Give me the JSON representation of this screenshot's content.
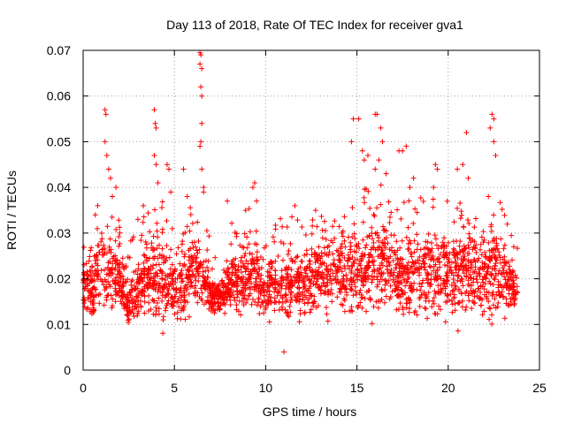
{
  "chart_data": {
    "type": "scatter",
    "title": "Day 113 of 2018, Rate Of TEC Index for receiver gva1",
    "xlabel": "GPS time / hours",
    "ylabel": "ROTI / TECUs",
    "xlim": [
      0,
      25
    ],
    "ylim": [
      0,
      0.07
    ],
    "x_ticks": [
      "0",
      "5",
      "10",
      "15",
      "20",
      "25"
    ],
    "y_ticks": [
      "0",
      "0.01",
      "0.02",
      "0.03",
      "0.04",
      "0.05",
      "0.06",
      "0.07"
    ],
    "grid": true,
    "marker": "+",
    "series_color": "#ff0000",
    "band_lower": [
      [
        0.0,
        0.012
      ],
      [
        0.5,
        0.009
      ],
      [
        1.0,
        0.01
      ],
      [
        1.5,
        0.01
      ],
      [
        2.0,
        0.011
      ],
      [
        2.5,
        0.008
      ],
      [
        3.0,
        0.01
      ],
      [
        3.5,
        0.009
      ],
      [
        4.0,
        0.007
      ],
      [
        4.5,
        0.008
      ],
      [
        5.0,
        0.01
      ],
      [
        5.5,
        0.009
      ],
      [
        6.0,
        0.011
      ],
      [
        6.5,
        0.01
      ],
      [
        7.0,
        0.01
      ],
      [
        7.5,
        0.012
      ],
      [
        8.0,
        0.012
      ],
      [
        8.5,
        0.011
      ],
      [
        9.0,
        0.011
      ],
      [
        9.5,
        0.012
      ],
      [
        10.0,
        0.009
      ],
      [
        10.5,
        0.011
      ],
      [
        11.0,
        0.007
      ],
      [
        11.5,
        0.01
      ],
      [
        12.0,
        0.008
      ],
      [
        12.5,
        0.011
      ],
      [
        13.0,
        0.011
      ],
      [
        13.5,
        0.011
      ],
      [
        14.0,
        0.012
      ],
      [
        14.5,
        0.01
      ],
      [
        15.0,
        0.009
      ],
      [
        15.5,
        0.01
      ],
      [
        16.0,
        0.009
      ],
      [
        16.5,
        0.01
      ],
      [
        17.0,
        0.009
      ],
      [
        17.5,
        0.008
      ],
      [
        18.0,
        0.008
      ],
      [
        18.5,
        0.009
      ],
      [
        19.0,
        0.009
      ],
      [
        19.5,
        0.01
      ],
      [
        20.0,
        0.009
      ],
      [
        20.5,
        0.008
      ],
      [
        21.0,
        0.009
      ],
      [
        21.5,
        0.009
      ],
      [
        22.0,
        0.009
      ],
      [
        22.5,
        0.009
      ],
      [
        23.0,
        0.01
      ],
      [
        23.5,
        0.012
      ],
      [
        23.8,
        0.013
      ]
    ],
    "band_upper": [
      [
        0.0,
        0.025
      ],
      [
        0.5,
        0.026
      ],
      [
        1.0,
        0.032
      ],
      [
        1.5,
        0.031
      ],
      [
        2.0,
        0.027
      ],
      [
        2.5,
        0.022
      ],
      [
        3.0,
        0.025
      ],
      [
        3.5,
        0.03
      ],
      [
        4.0,
        0.033
      ],
      [
        4.5,
        0.031
      ],
      [
        5.0,
        0.026
      ],
      [
        5.5,
        0.027
      ],
      [
        6.0,
        0.031
      ],
      [
        6.5,
        0.029
      ],
      [
        7.0,
        0.022
      ],
      [
        7.5,
        0.019
      ],
      [
        8.0,
        0.027
      ],
      [
        8.5,
        0.026
      ],
      [
        9.0,
        0.03
      ],
      [
        9.5,
        0.029
      ],
      [
        10.0,
        0.024
      ],
      [
        10.5,
        0.029
      ],
      [
        11.0,
        0.026
      ],
      [
        11.5,
        0.03
      ],
      [
        12.0,
        0.028
      ],
      [
        12.5,
        0.029
      ],
      [
        13.0,
        0.03
      ],
      [
        13.5,
        0.03
      ],
      [
        14.0,
        0.031
      ],
      [
        14.5,
        0.032
      ],
      [
        15.0,
        0.032
      ],
      [
        15.5,
        0.034
      ],
      [
        16.0,
        0.037
      ],
      [
        16.5,
        0.034
      ],
      [
        17.0,
        0.033
      ],
      [
        17.5,
        0.032
      ],
      [
        18.0,
        0.033
      ],
      [
        18.5,
        0.033
      ],
      [
        19.0,
        0.033
      ],
      [
        19.5,
        0.033
      ],
      [
        20.0,
        0.032
      ],
      [
        20.5,
        0.031
      ],
      [
        21.0,
        0.034
      ],
      [
        21.5,
        0.033
      ],
      [
        22.0,
        0.031
      ],
      [
        22.5,
        0.033
      ],
      [
        23.0,
        0.031
      ],
      [
        23.5,
        0.024
      ],
      [
        23.8,
        0.022
      ]
    ],
    "spikes": [
      {
        "x": 1.2,
        "y": 0.057
      },
      {
        "x": 1.25,
        "y": 0.056
      },
      {
        "x": 1.2,
        "y": 0.05
      },
      {
        "x": 1.3,
        "y": 0.047
      },
      {
        "x": 1.4,
        "y": 0.044
      },
      {
        "x": 1.5,
        "y": 0.042
      },
      {
        "x": 1.6,
        "y": 0.038
      },
      {
        "x": 1.8,
        "y": 0.04
      },
      {
        "x": 0.8,
        "y": 0.036
      },
      {
        "x": 3.0,
        "y": 0.033
      },
      {
        "x": 3.3,
        "y": 0.036
      },
      {
        "x": 3.9,
        "y": 0.057
      },
      {
        "x": 3.95,
        "y": 0.054
      },
      {
        "x": 4.0,
        "y": 0.053
      },
      {
        "x": 3.9,
        "y": 0.047
      },
      {
        "x": 4.0,
        "y": 0.045
      },
      {
        "x": 4.1,
        "y": 0.041
      },
      {
        "x": 4.6,
        "y": 0.045
      },
      {
        "x": 4.7,
        "y": 0.044
      },
      {
        "x": 4.8,
        "y": 0.039
      },
      {
        "x": 5.5,
        "y": 0.044
      },
      {
        "x": 5.7,
        "y": 0.038
      },
      {
        "x": 6.4,
        "y": 0.0695
      },
      {
        "x": 6.45,
        "y": 0.069
      },
      {
        "x": 6.4,
        "y": 0.067
      },
      {
        "x": 6.5,
        "y": 0.066
      },
      {
        "x": 6.45,
        "y": 0.062
      },
      {
        "x": 6.5,
        "y": 0.06
      },
      {
        "x": 6.5,
        "y": 0.054
      },
      {
        "x": 6.45,
        "y": 0.05
      },
      {
        "x": 6.4,
        "y": 0.049
      },
      {
        "x": 6.5,
        "y": 0.044
      },
      {
        "x": 6.6,
        "y": 0.04
      },
      {
        "x": 6.6,
        "y": 0.039
      },
      {
        "x": 7.9,
        "y": 0.037
      },
      {
        "x": 9.3,
        "y": 0.04
      },
      {
        "x": 9.4,
        "y": 0.041
      },
      {
        "x": 9.5,
        "y": 0.037
      },
      {
        "x": 11.6,
        "y": 0.036
      },
      {
        "x": 11.0,
        "y": 0.004
      },
      {
        "x": 14.8,
        "y": 0.055
      },
      {
        "x": 15.1,
        "y": 0.055
      },
      {
        "x": 14.7,
        "y": 0.05
      },
      {
        "x": 15.3,
        "y": 0.048
      },
      {
        "x": 15.4,
        "y": 0.046
      },
      {
        "x": 16.0,
        "y": 0.056
      },
      {
        "x": 16.1,
        "y": 0.056
      },
      {
        "x": 16.3,
        "y": 0.053
      },
      {
        "x": 16.4,
        "y": 0.05
      },
      {
        "x": 15.6,
        "y": 0.047
      },
      {
        "x": 16.2,
        "y": 0.046
      },
      {
        "x": 16.0,
        "y": 0.044
      },
      {
        "x": 16.6,
        "y": 0.043
      },
      {
        "x": 17.3,
        "y": 0.048
      },
      {
        "x": 17.5,
        "y": 0.048
      },
      {
        "x": 17.7,
        "y": 0.049
      },
      {
        "x": 18.1,
        "y": 0.042
      },
      {
        "x": 17.9,
        "y": 0.04
      },
      {
        "x": 19.3,
        "y": 0.045
      },
      {
        "x": 19.4,
        "y": 0.044
      },
      {
        "x": 19.2,
        "y": 0.04
      },
      {
        "x": 20.5,
        "y": 0.044
      },
      {
        "x": 21.0,
        "y": 0.052
      },
      {
        "x": 20.8,
        "y": 0.045
      },
      {
        "x": 21.1,
        "y": 0.042
      },
      {
        "x": 22.4,
        "y": 0.056
      },
      {
        "x": 22.5,
        "y": 0.055
      },
      {
        "x": 22.3,
        "y": 0.053
      },
      {
        "x": 22.5,
        "y": 0.05
      },
      {
        "x": 22.6,
        "y": 0.047
      },
      {
        "x": 22.2,
        "y": 0.038
      }
    ]
  }
}
